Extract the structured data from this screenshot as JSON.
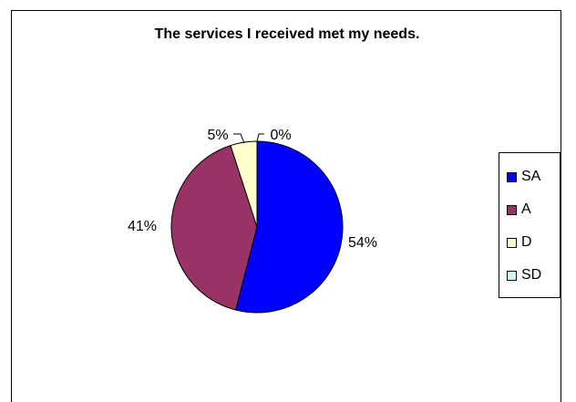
{
  "chart_data": {
    "type": "pie",
    "title": "The services I received met my needs.",
    "categories": [
      "SA",
      "A",
      "D",
      "SD"
    ],
    "values": [
      54,
      41,
      5,
      0
    ],
    "labels": [
      "54%",
      "41%",
      "5%",
      "0%"
    ],
    "colors": [
      "#0000FF",
      "#993366",
      "#FFFFCC",
      "#CCFFFF"
    ],
    "legend_position": "right",
    "legend": [
      "SA",
      "A",
      "D",
      "SD"
    ]
  }
}
